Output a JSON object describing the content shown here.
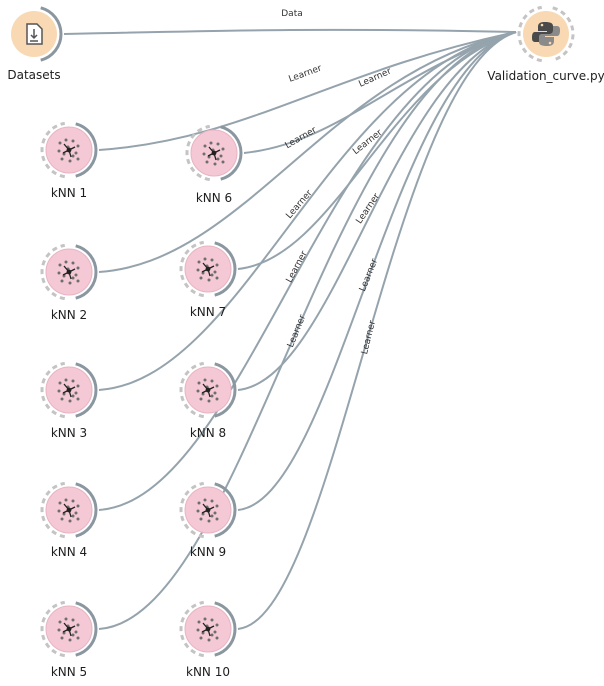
{
  "workflow": {
    "nodes": [
      {
        "id": "datasets",
        "label": "Datasets",
        "icon": "download-icon",
        "color": "#f8d9b4"
      },
      {
        "id": "validation",
        "label": "Validation_curve.py",
        "icon": "python-icon",
        "color": "#f8d9b4"
      },
      {
        "id": "knn1",
        "label": "kNN 1",
        "icon": "knn-icon",
        "color": "#f4c8d4"
      },
      {
        "id": "knn2",
        "label": "kNN 2",
        "icon": "knn-icon",
        "color": "#f4c8d4"
      },
      {
        "id": "knn3",
        "label": "kNN 3",
        "icon": "knn-icon",
        "color": "#f4c8d4"
      },
      {
        "id": "knn4",
        "label": "kNN 4",
        "icon": "knn-icon",
        "color": "#f4c8d4"
      },
      {
        "id": "knn5",
        "label": "kNN 5",
        "icon": "knn-icon",
        "color": "#f4c8d4"
      },
      {
        "id": "knn6",
        "label": "kNN 6",
        "icon": "knn-icon",
        "color": "#f4c8d4"
      },
      {
        "id": "knn7",
        "label": "kNN 7",
        "icon": "knn-icon",
        "color": "#f4c8d4"
      },
      {
        "id": "knn8",
        "label": "kNN 8",
        "icon": "knn-icon",
        "color": "#f4c8d4"
      },
      {
        "id": "knn9",
        "label": "kNN 9",
        "icon": "knn-icon",
        "color": "#f4c8d4"
      },
      {
        "id": "knn10",
        "label": "kNN 10",
        "icon": "knn-icon",
        "color": "#f4c8d4"
      }
    ],
    "links": [
      {
        "from": "datasets",
        "to": "validation",
        "label": "Data"
      },
      {
        "from": "knn1",
        "to": "validation",
        "label": "Learner"
      },
      {
        "from": "knn6",
        "to": "validation",
        "label": "Learner"
      },
      {
        "from": "knn2",
        "to": "validation",
        "label": "Learner"
      },
      {
        "from": "knn7",
        "to": "validation",
        "label": "Learner"
      },
      {
        "from": "knn3",
        "to": "validation",
        "label": "Learner"
      },
      {
        "from": "knn8",
        "to": "validation",
        "label": "Learner"
      },
      {
        "from": "knn4",
        "to": "validation",
        "label": "Learner"
      },
      {
        "from": "knn9",
        "to": "validation",
        "label": "Learner"
      },
      {
        "from": "knn5",
        "to": "validation",
        "label": "Learner"
      },
      {
        "from": "knn10",
        "to": "validation",
        "label": "Learner"
      }
    ],
    "link_color": "#95a3ad"
  }
}
